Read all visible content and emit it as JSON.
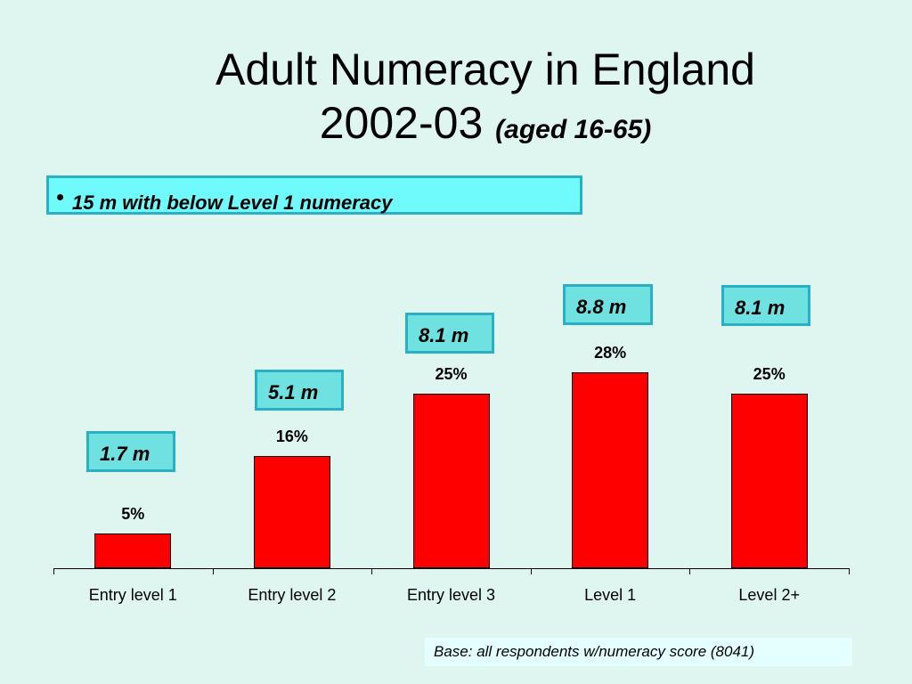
{
  "title": {
    "line1": "Adult Numeracy in England",
    "line2": "2002-03",
    "subtitle": "(aged 16-65)"
  },
  "bullet": {
    "symbol": "•",
    "text": "15 m with below Level 1 numeracy"
  },
  "boxes": [
    "1.7 m",
    "5.1 m",
    "8.1 m",
    "8.8 m",
    "8.1 m"
  ],
  "chart_data": {
    "type": "bar",
    "categories": [
      "Entry level 1",
      "Entry level 2",
      "Entry level 3",
      "Level 1",
      "Level 2+"
    ],
    "values": [
      5,
      16,
      25,
      28,
      25
    ],
    "data_labels": [
      "5%",
      "16%",
      "25%",
      "28%",
      "25%"
    ],
    "ylim": [
      0,
      28
    ],
    "bar_color": "#ff0000",
    "grid": false
  },
  "base_note": "Base: all respondents w/numeracy score (8041)",
  "colors": {
    "background": "#dff5ef",
    "box_fill": "#6fe1e1",
    "box_border": "#2ab0c4",
    "bullet_fill": "#6ffbfb"
  }
}
